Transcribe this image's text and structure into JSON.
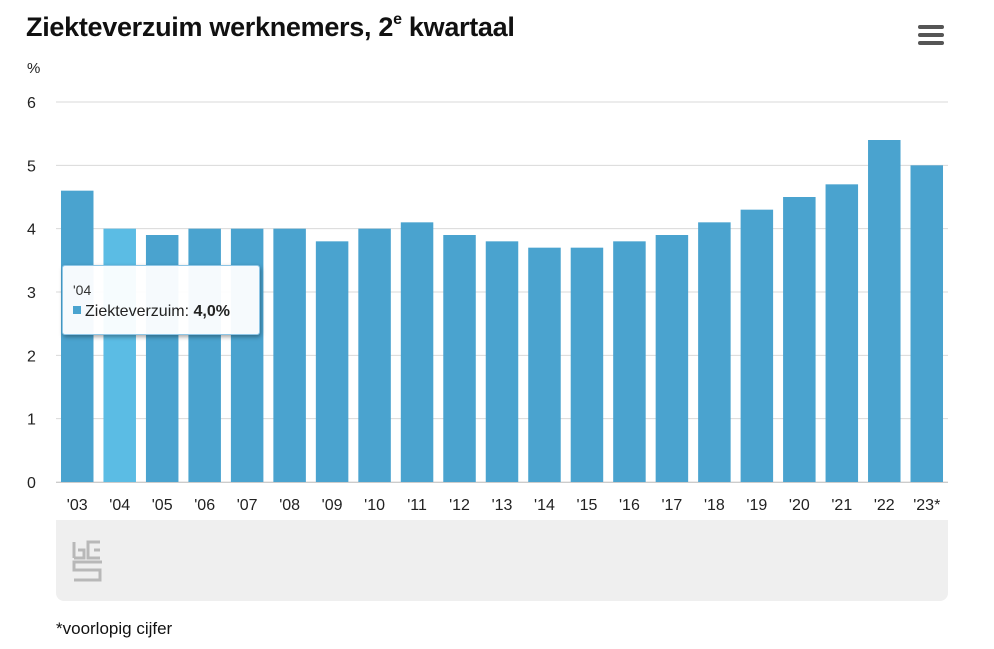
{
  "header": {
    "title_main": "Ziekteverzuim werknemers, 2",
    "title_sup": "e",
    "title_tail": " kwartaal",
    "menu_icon": "hamburger-menu-icon"
  },
  "chart_data": {
    "type": "bar",
    "title": "Ziekteverzuim werknemers, 2e kwartaal",
    "ylabel": "%",
    "xlabel": "",
    "ylim": [
      0,
      6
    ],
    "yticks": [
      "0",
      "1",
      "2",
      "3",
      "4",
      "5",
      "6"
    ],
    "grid": true,
    "categories": [
      "'03",
      "'04",
      "'05",
      "'06",
      "'07",
      "'08",
      "'09",
      "'10",
      "'11",
      "'12",
      "'13",
      "'14",
      "'15",
      "'16",
      "'17",
      "'18",
      "'19",
      "'20",
      "'21",
      "'22",
      "'23*"
    ],
    "series": [
      {
        "name": "Ziekteverzuim",
        "values": [
          4.6,
          4.0,
          3.9,
          4.0,
          4.0,
          4.0,
          3.8,
          4.0,
          4.1,
          3.9,
          3.8,
          3.7,
          3.7,
          3.8,
          3.9,
          4.1,
          4.3,
          4.5,
          4.7,
          5.4,
          5.0
        ],
        "color": "#4aa3cf"
      }
    ],
    "highlight_color": "#5bbce4",
    "highlight_index": 1,
    "tooltip": {
      "category": "'04",
      "label": "Ziekteverzuim:",
      "value": "4,0%"
    },
    "footnote": "*voorlopig cijfer"
  },
  "colors": {
    "bar": "#4aa3cf",
    "bar_highlight": "#5bbce4",
    "grid": "#d9d9d9",
    "footer_panel": "#efefef"
  },
  "logo_icon": "cbs-logo-icon"
}
